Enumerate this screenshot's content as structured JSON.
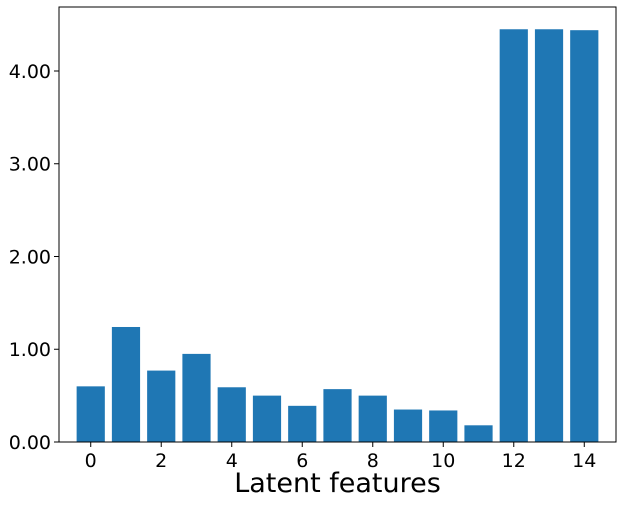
{
  "chart_data": {
    "type": "bar",
    "x": [
      0,
      1,
      2,
      3,
      4,
      5,
      6,
      7,
      8,
      9,
      10,
      11,
      12,
      13,
      14
    ],
    "values": [
      0.6,
      1.24,
      0.77,
      0.95,
      0.59,
      0.5,
      0.39,
      0.57,
      0.5,
      0.35,
      0.34,
      0.18,
      4.45,
      4.45,
      4.44
    ],
    "xlabel": "Latent features",
    "ylabel": "",
    "xlim": [
      -0.9,
      14.9
    ],
    "ylim": [
      0,
      4.69
    ],
    "xticks": [
      0,
      2,
      4,
      6,
      8,
      10,
      12,
      14
    ],
    "xtick_labels": [
      "0",
      "2",
      "4",
      "6",
      "8",
      "10",
      "12",
      "14"
    ],
    "yticks": [
      0,
      1,
      2,
      3,
      4
    ],
    "ytick_labels": [
      "0.00",
      "1.00",
      "2.00",
      "3.00",
      "4.00"
    ],
    "bar_color": "#1f77b4",
    "grid": false,
    "legend": "none"
  }
}
